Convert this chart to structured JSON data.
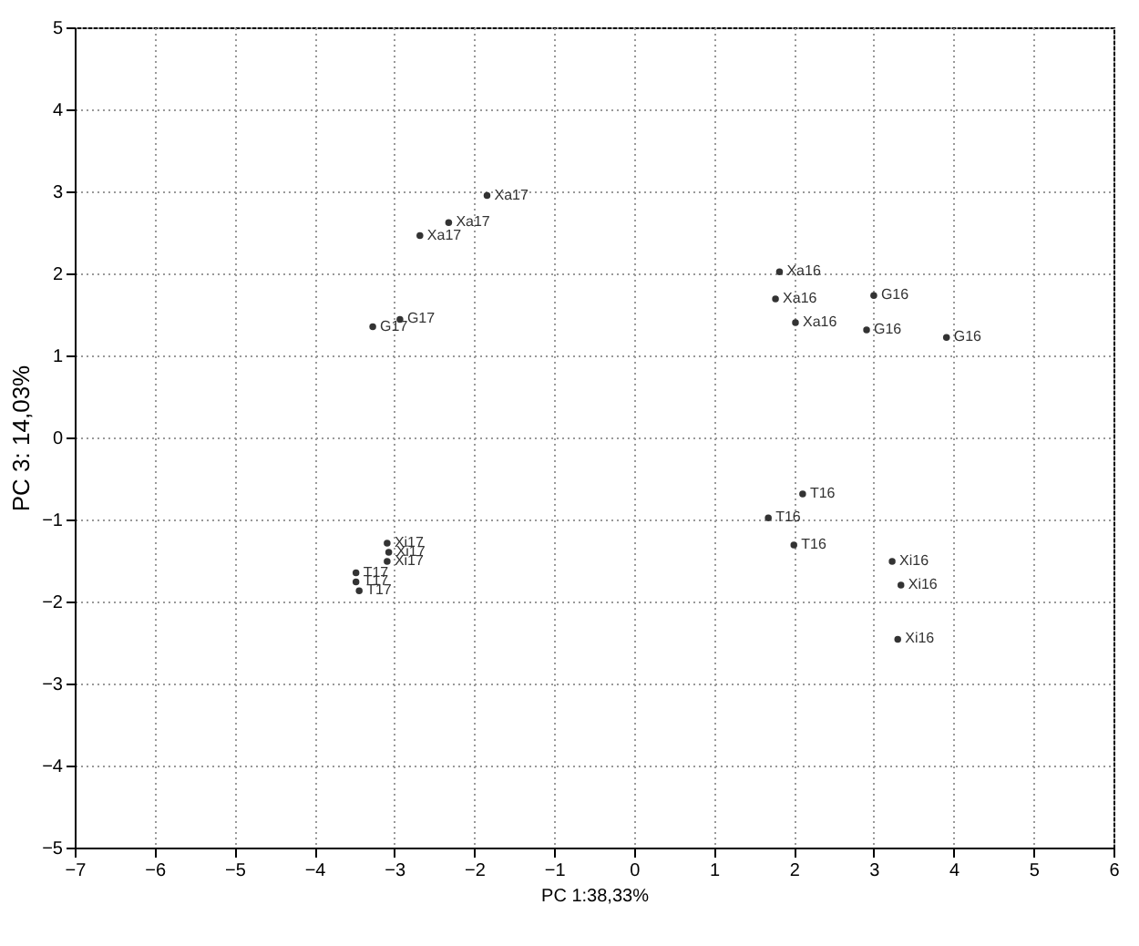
{
  "chart_data": {
    "type": "scatter",
    "xlabel": "PC 1:38,33%",
    "ylabel": "PC 3: 14,03%",
    "marker": "circle",
    "grid": true,
    "legend": false,
    "xlim": [
      -7,
      6
    ],
    "xticks": [
      -7,
      -6,
      -5,
      -4,
      -3,
      -2,
      -1,
      0,
      1,
      2,
      3,
      4,
      5,
      6
    ],
    "ylim": [
      -5,
      5
    ],
    "yticks": [
      -5,
      -4,
      -3,
      -2,
      -1,
      0,
      1,
      2,
      3,
      4,
      5
    ],
    "series": [
      {
        "name": "Xa17",
        "color": "#333333",
        "x": [
          -1.84,
          -2.32,
          -2.68
        ],
        "values": [
          2.95,
          2.62,
          2.46
        ]
      },
      {
        "name": "G17",
        "color": "#333333",
        "x": [
          -3.27,
          -2.93
        ],
        "values": [
          1.35,
          1.44
        ]
      },
      {
        "name": "Xi17",
        "color": "#333333",
        "x": [
          -3.09,
          -3.07,
          -3.09
        ],
        "values": [
          -1.29,
          -1.4,
          -1.51
        ]
      },
      {
        "name": "T17",
        "color": "#333333",
        "x": [
          -3.48,
          -3.48,
          -3.44
        ],
        "values": [
          -1.65,
          -1.76,
          -1.87
        ]
      },
      {
        "name": "Xa16",
        "color": "#333333",
        "x": [
          1.82,
          1.77,
          2.02
        ],
        "values": [
          2.02,
          1.69,
          1.4
        ]
      },
      {
        "name": "G16",
        "color": "#333333",
        "x": [
          3.0,
          2.91,
          3.91
        ],
        "values": [
          1.73,
          1.31,
          1.22
        ]
      },
      {
        "name": "T16",
        "color": "#333333",
        "x": [
          2.11,
          1.68,
          2.0
        ],
        "values": [
          -0.69,
          -0.98,
          -1.31
        ]
      },
      {
        "name": "Xi16",
        "color": "#333333",
        "x": [
          3.23,
          3.34,
          3.3
        ],
        "values": [
          -1.51,
          -1.8,
          -2.46
        ]
      }
    ]
  }
}
